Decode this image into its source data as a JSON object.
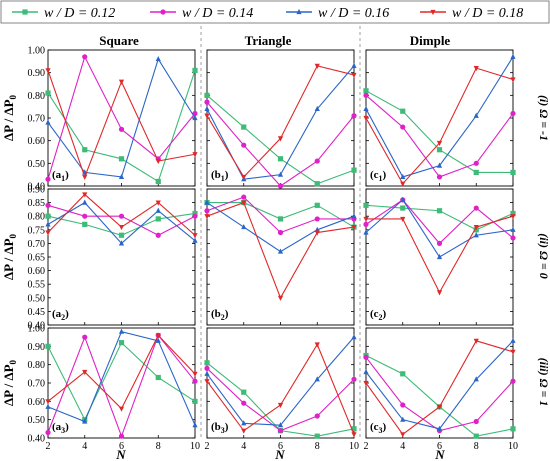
{
  "legend": [
    {
      "label": "w / D = 0.12",
      "color": "#3dbb77",
      "marker": "square"
    },
    {
      "label": "w / D = 0.14",
      "color": "#e020c8",
      "marker": "circle"
    },
    {
      "label": "w / D = 0.16",
      "color": "#2a66c8",
      "marker": "triangle-up"
    },
    {
      "label": "w / D = 0.18",
      "color": "#e02828",
      "marker": "triangle-down"
    }
  ],
  "column_titles": [
    "Square",
    "Triangle",
    "Dimple"
  ],
  "row_labels": [
    "(i) Ω = -1",
    "(ii) Ω = 0",
    "(iii) Ω = 1"
  ],
  "ylabel": "ΔP / ΔP0",
  "xlabel": "N",
  "chart_data": [
    {
      "type": "line",
      "panel": "a1",
      "x": [
        2,
        4,
        6,
        8,
        10
      ],
      "ylim": [
        0.4,
        1.0
      ],
      "series": [
        {
          "name": "w / D = 0.12",
          "values": [
            0.81,
            0.56,
            0.52,
            0.42,
            0.91
          ]
        },
        {
          "name": "w / D = 0.14",
          "values": [
            0.43,
            0.97,
            0.65,
            0.52,
            0.72
          ]
        },
        {
          "name": "w / D = 0.16",
          "values": [
            0.68,
            0.46,
            0.44,
            0.96,
            0.7
          ]
        },
        {
          "name": "w / D = 0.18",
          "values": [
            0.91,
            0.44,
            0.86,
            0.51,
            0.54
          ]
        }
      ]
    },
    {
      "type": "line",
      "panel": "b1",
      "x": [
        2,
        4,
        6,
        8,
        10
      ],
      "ylim": [
        0.4,
        1.0
      ],
      "series": [
        {
          "name": "w / D = 0.12",
          "values": [
            0.8,
            0.66,
            0.52,
            0.41,
            0.47
          ]
        },
        {
          "name": "w / D = 0.14",
          "values": [
            0.77,
            0.58,
            0.4,
            0.51,
            0.71
          ]
        },
        {
          "name": "w / D = 0.16",
          "values": [
            0.74,
            0.43,
            0.45,
            0.74,
            0.93
          ]
        },
        {
          "name": "w / D = 0.18",
          "values": [
            0.71,
            0.44,
            0.61,
            0.93,
            0.89
          ]
        }
      ]
    },
    {
      "type": "line",
      "panel": "c1",
      "x": [
        2,
        4,
        6,
        8,
        10
      ],
      "ylim": [
        0.4,
        1.0
      ],
      "series": [
        {
          "name": "w / D = 0.12",
          "values": [
            0.82,
            0.73,
            0.56,
            0.46,
            0.46
          ]
        },
        {
          "name": "w / D = 0.14",
          "values": [
            0.8,
            0.66,
            0.44,
            0.5,
            0.72
          ]
        },
        {
          "name": "w / D = 0.16",
          "values": [
            0.74,
            0.44,
            0.49,
            0.71,
            0.97
          ]
        },
        {
          "name": "w / D = 0.18",
          "values": [
            0.7,
            0.41,
            0.59,
            0.92,
            0.87
          ]
        }
      ]
    },
    {
      "type": "line",
      "panel": "a2",
      "x": [
        2,
        4,
        6,
        8,
        10
      ],
      "ylim": [
        0.4,
        0.9
      ],
      "series": [
        {
          "name": "w / D = 0.12",
          "values": [
            0.8,
            0.77,
            0.73,
            0.79,
            0.81
          ]
        },
        {
          "name": "w / D = 0.14",
          "values": [
            0.84,
            0.8,
            0.8,
            0.73,
            0.8
          ]
        },
        {
          "name": "w / D = 0.16",
          "values": [
            0.77,
            0.85,
            0.7,
            0.82,
            0.71
          ]
        },
        {
          "name": "w / D = 0.18",
          "values": [
            0.74,
            0.88,
            0.76,
            0.85,
            0.73
          ]
        }
      ]
    },
    {
      "type": "line",
      "panel": "b2",
      "x": [
        2,
        4,
        6,
        8,
        10
      ],
      "ylim": [
        0.4,
        0.9
      ],
      "series": [
        {
          "name": "w / D = 0.12",
          "values": [
            0.85,
            0.85,
            0.79,
            0.84,
            0.76
          ]
        },
        {
          "name": "w / D = 0.14",
          "values": [
            0.82,
            0.87,
            0.74,
            0.79,
            0.79
          ]
        },
        {
          "name": "w / D = 0.16",
          "values": [
            0.85,
            0.76,
            0.67,
            0.75,
            0.8
          ]
        },
        {
          "name": "w / D = 0.18",
          "values": [
            0.8,
            0.85,
            0.5,
            0.74,
            0.76
          ]
        }
      ]
    },
    {
      "type": "line",
      "panel": "c2",
      "x": [
        2,
        4,
        6,
        8,
        10
      ],
      "ylim": [
        0.4,
        0.9
      ],
      "series": [
        {
          "name": "w / D = 0.12",
          "values": [
            0.84,
            0.83,
            0.82,
            0.75,
            0.81
          ]
        },
        {
          "name": "w / D = 0.14",
          "values": [
            0.77,
            0.86,
            0.7,
            0.83,
            0.72
          ]
        },
        {
          "name": "w / D = 0.16",
          "values": [
            0.74,
            0.86,
            0.65,
            0.73,
            0.75
          ]
        },
        {
          "name": "w / D = 0.18",
          "values": [
            0.79,
            0.79,
            0.52,
            0.76,
            0.8
          ]
        }
      ]
    },
    {
      "type": "line",
      "panel": "a3",
      "x": [
        2,
        4,
        6,
        8,
        10
      ],
      "ylim": [
        0.4,
        1.0
      ],
      "series": [
        {
          "name": "w / D = 0.12",
          "values": [
            0.9,
            0.5,
            0.92,
            0.73,
            0.6
          ]
        },
        {
          "name": "w / D = 0.14",
          "values": [
            0.43,
            0.95,
            0.41,
            0.96,
            0.71
          ]
        },
        {
          "name": "w / D = 0.16",
          "values": [
            0.57,
            0.49,
            0.98,
            0.93,
            0.47
          ]
        },
        {
          "name": "w / D = 0.18",
          "values": [
            0.6,
            0.76,
            0.56,
            0.96,
            0.75
          ]
        }
      ]
    },
    {
      "type": "line",
      "panel": "b3",
      "x": [
        2,
        4,
        6,
        8,
        10
      ],
      "ylim": [
        0.4,
        1.0
      ],
      "series": [
        {
          "name": "w / D = 0.12",
          "values": [
            0.81,
            0.65,
            0.44,
            0.41,
            0.45
          ]
        },
        {
          "name": "w / D = 0.14",
          "values": [
            0.78,
            0.59,
            0.44,
            0.52,
            0.72
          ]
        },
        {
          "name": "w / D = 0.16",
          "values": [
            0.75,
            0.48,
            0.47,
            0.72,
            0.95
          ]
        },
        {
          "name": "w / D = 0.18",
          "values": [
            0.71,
            0.44,
            0.58,
            0.91,
            0.42
          ]
        }
      ]
    },
    {
      "type": "line",
      "panel": "c3",
      "x": [
        2,
        4,
        6,
        8,
        10
      ],
      "ylim": [
        0.4,
        1.0
      ],
      "series": [
        {
          "name": "w / D = 0.12",
          "values": [
            0.85,
            0.75,
            0.57,
            0.41,
            0.45
          ]
        },
        {
          "name": "w / D = 0.14",
          "values": [
            0.84,
            0.58,
            0.44,
            0.49,
            0.71
          ]
        },
        {
          "name": "w / D = 0.16",
          "values": [
            0.76,
            0.5,
            0.45,
            0.72,
            0.93
          ]
        },
        {
          "name": "w / D = 0.18",
          "values": [
            0.7,
            0.42,
            0.57,
            0.93,
            0.87
          ]
        }
      ]
    }
  ],
  "panels": [
    {
      "label": "a",
      "sub": "1",
      "yticks": [
        "0.40",
        "0.50",
        "0.60",
        "0.70",
        "0.80",
        "0.90",
        "1.00"
      ]
    },
    {
      "label": "b",
      "sub": "1"
    },
    {
      "label": "c",
      "sub": "1"
    },
    {
      "label": "a",
      "sub": "2",
      "yticks": [
        "0.40",
        "0.45",
        "0.50",
        "0.55",
        "0.60",
        "0.65",
        "0.70",
        "0.75",
        "0.80",
        "0.85",
        "0.90"
      ]
    },
    {
      "label": "b",
      "sub": "2"
    },
    {
      "label": "c",
      "sub": "2"
    },
    {
      "label": "a",
      "sub": "3",
      "yticks": [
        "0.40",
        "0.50",
        "0.60",
        "0.70",
        "0.80",
        "0.90",
        "1.00"
      ]
    },
    {
      "label": "b",
      "sub": "3"
    },
    {
      "label": "c",
      "sub": "3"
    }
  ],
  "xticks": [
    "2",
    "4",
    "6",
    "8",
    "10"
  ]
}
